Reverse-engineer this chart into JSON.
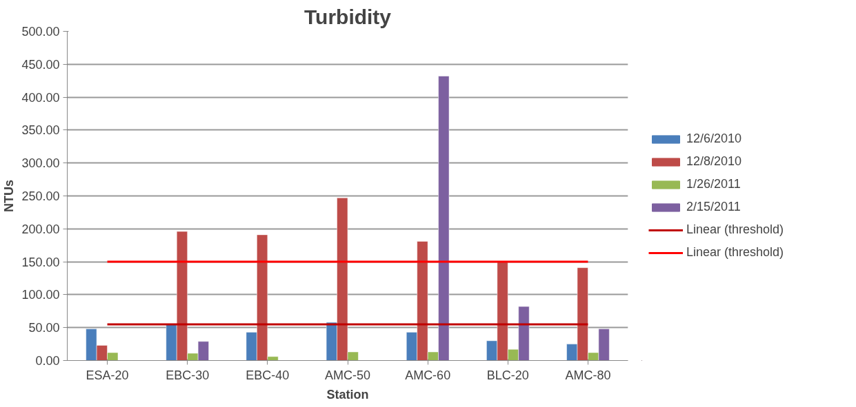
{
  "chart_data": {
    "type": "bar",
    "title": "Turbidity",
    "xlabel": "Station",
    "ylabel": "NTUs",
    "categories": [
      "ESA-20",
      "EBC-30",
      "EBC-40",
      "AMC-50",
      "AMC-60",
      "BLC-20",
      "AMC-80"
    ],
    "series": [
      {
        "name": "12/6/2010",
        "color": "#4a7ebb",
        "values": [
          48,
          55,
          43,
          58,
          43,
          30,
          25
        ]
      },
      {
        "name": "12/8/2010",
        "color": "#be4b48",
        "values": [
          23,
          196,
          191,
          247,
          181,
          150,
          141
        ]
      },
      {
        "name": "1/26/2011",
        "color": "#98b954",
        "values": [
          12,
          11,
          6,
          13,
          13,
          17,
          12
        ]
      },
      {
        "name": "2/15/2011",
        "color": "#7d60a0",
        "values": [
          null,
          29,
          null,
          null,
          432,
          82,
          48
        ]
      },
      {
        "name": "Linear (threshold)",
        "type": "line",
        "color": "#c00000",
        "values": [
          55,
          55,
          55,
          55,
          55,
          55,
          55
        ]
      },
      {
        "name": "Linear (threshold)",
        "type": "line",
        "color": "#ff0000",
        "values": [
          150,
          150,
          150,
          150,
          150,
          150,
          150
        ]
      }
    ],
    "ylim": [
      0,
      500
    ],
    "yticks": [
      {
        "value": 0,
        "label": "0.00"
      },
      {
        "value": 50,
        "label": "50.00"
      },
      {
        "value": 100,
        "label": "100.00"
      },
      {
        "value": 150,
        "label": "150.00"
      },
      {
        "value": 200,
        "label": "200.00"
      },
      {
        "value": 250,
        "label": "250.00"
      },
      {
        "value": 300,
        "label": "300.00"
      },
      {
        "value": 350,
        "label": "350.00"
      },
      {
        "value": 400,
        "label": "400.00"
      },
      {
        "value": 450,
        "label": "450.00"
      },
      {
        "value": 500,
        "label": "500.00"
      }
    ],
    "grid": "y",
    "legend": "right",
    "marker": "none",
    "line_style": "solid"
  }
}
